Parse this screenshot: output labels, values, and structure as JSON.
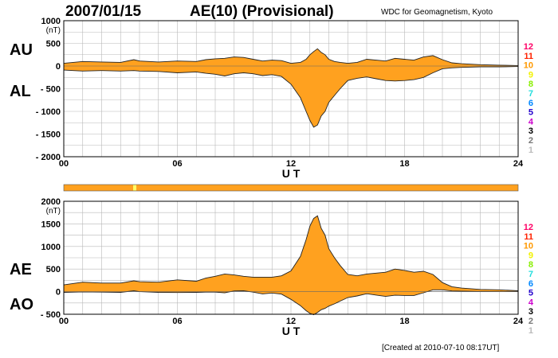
{
  "header": {
    "date": "2007/01/15",
    "title": "AE(10) (Provisional)",
    "source": "WDC for Geomagnetism, Kyoto"
  },
  "footer": {
    "created": "[Created at 2010-07-10 08:17UT]"
  },
  "colors": {
    "fill": "#ffa11f",
    "grid": "#b8b8b8",
    "strip_marker": "#ffff66"
  },
  "station_legend": [
    {
      "num": "12",
      "color": "#ff0066"
    },
    {
      "num": "11",
      "color": "#ff2200"
    },
    {
      "num": "10",
      "color": "#ff9900"
    },
    {
      "num": "9",
      "color": "#f2f200"
    },
    {
      "num": "8",
      "color": "#88ee00"
    },
    {
      "num": "7",
      "color": "#22dddd"
    },
    {
      "num": "6",
      "color": "#0088ff"
    },
    {
      "num": "5",
      "color": "#2200cc"
    },
    {
      "num": "4",
      "color": "#cc00cc"
    },
    {
      "num": "3",
      "color": "#000000"
    },
    {
      "num": "2",
      "color": "#777777"
    },
    {
      "num": "1",
      "color": "#bbbbbb"
    }
  ],
  "availability_strip": {
    "marker_hours": [
      3.75
    ]
  },
  "chart_data": [
    {
      "type": "area",
      "x_label": "U T",
      "unit": "(nT)",
      "series_labels": [
        "AU",
        "AL"
      ],
      "xlim": [
        0,
        24
      ],
      "ylim": [
        -2000,
        1000
      ],
      "x_ticks": [
        "00",
        "06",
        "12",
        "18",
        "24"
      ],
      "y_ticks": [
        "1000",
        "500",
        "0",
        "- 500",
        "- 1000",
        "- 1500",
        "- 2000"
      ],
      "grid": true,
      "x": [
        0,
        1,
        2,
        3,
        3.7,
        4,
        5,
        6,
        7,
        7.5,
        8,
        8.5,
        9,
        9.5,
        10,
        10.5,
        11,
        11.5,
        12,
        12.5,
        12.8,
        13,
        13.2,
        13.4,
        13.6,
        13.8,
        14,
        14.3,
        14.6,
        15,
        15.5,
        16,
        16.5,
        17,
        17.5,
        18,
        18.5,
        19,
        19.5,
        20,
        20.5,
        21,
        22,
        23,
        24
      ],
      "upper": [
        60,
        100,
        90,
        80,
        140,
        110,
        90,
        110,
        100,
        140,
        160,
        170,
        200,
        190,
        150,
        110,
        130,
        120,
        60,
        80,
        150,
        250,
        320,
        380,
        300,
        250,
        150,
        100,
        80,
        60,
        80,
        150,
        130,
        110,
        170,
        150,
        130,
        200,
        230,
        140,
        70,
        50,
        30,
        20,
        10
      ],
      "lower": [
        -90,
        -110,
        -100,
        -110,
        -100,
        -110,
        -120,
        -150,
        -130,
        -160,
        -180,
        -220,
        -170,
        -150,
        -170,
        -210,
        -190,
        -230,
        -400,
        -700,
        -1000,
        -1200,
        -1350,
        -1300,
        -1100,
        -1000,
        -800,
        -650,
        -500,
        -320,
        -270,
        -240,
        -280,
        -320,
        -330,
        -320,
        -300,
        -250,
        -150,
        -60,
        -40,
        -30,
        -20,
        -20,
        -10
      ]
    },
    {
      "type": "area",
      "x_label": "U T",
      "unit": "(nT)",
      "series_labels": [
        "AE",
        "AO"
      ],
      "xlim": [
        0,
        24
      ],
      "ylim": [
        -500,
        2000
      ],
      "x_ticks": [
        "00",
        "06",
        "12",
        "18",
        "24"
      ],
      "y_ticks": [
        "2000",
        "1500",
        "1000",
        "500",
        "0",
        "- 500"
      ],
      "grid": true,
      "x": [
        0,
        1,
        2,
        3,
        3.7,
        4,
        5,
        6,
        7,
        7.5,
        8,
        8.5,
        9,
        9.5,
        10,
        10.5,
        11,
        11.5,
        12,
        12.5,
        12.8,
        13,
        13.2,
        13.4,
        13.6,
        13.8,
        14,
        14.3,
        14.6,
        15,
        15.5,
        16,
        16.5,
        17,
        17.5,
        18,
        18.5,
        19,
        19.5,
        20,
        20.5,
        21,
        22,
        23,
        24
      ],
      "upper": [
        150,
        210,
        190,
        190,
        240,
        220,
        210,
        260,
        230,
        300,
        340,
        390,
        370,
        340,
        320,
        320,
        320,
        350,
        460,
        780,
        1150,
        1450,
        1620,
        1680,
        1400,
        1250,
        950,
        750,
        580,
        380,
        350,
        390,
        410,
        430,
        500,
        470,
        430,
        450,
        380,
        200,
        110,
        80,
        50,
        40,
        20
      ],
      "lower": [
        -15,
        -5,
        -10,
        -15,
        20,
        0,
        -15,
        -20,
        -15,
        -10,
        -10,
        -25,
        15,
        20,
        -10,
        -50,
        -30,
        -55,
        -170,
        -310,
        -420,
        -480,
        -510,
        -460,
        -400,
        -370,
        -320,
        -270,
        -210,
        -130,
        -95,
        -45,
        -75,
        -105,
        -80,
        -85,
        -85,
        -25,
        40,
        40,
        15,
        10,
        5,
        0,
        0
      ]
    }
  ]
}
